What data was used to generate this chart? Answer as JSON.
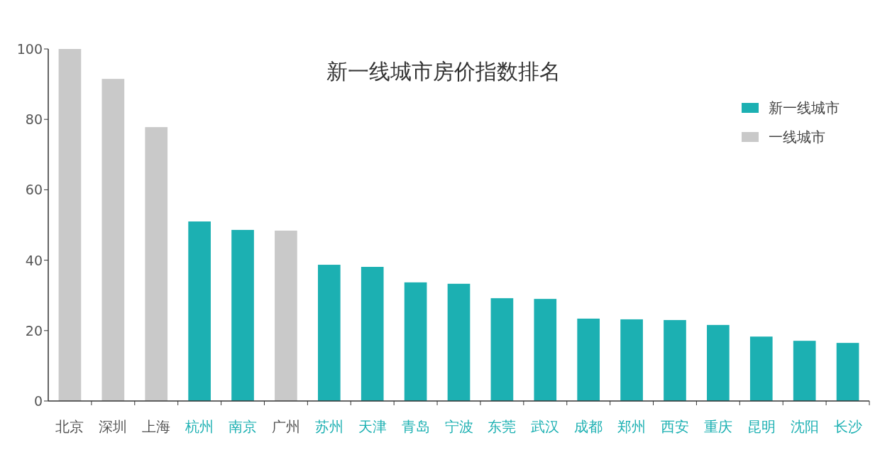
{
  "chart_data": {
    "type": "bar",
    "title": "新一线城市房价指数排名",
    "categories": [
      "北京",
      "深圳",
      "上海",
      "杭州",
      "南京",
      "广州",
      "苏州",
      "天津",
      "青岛",
      "宁波",
      "东莞",
      "武汉",
      "成都",
      "郑州",
      "西安",
      "重庆",
      "昆明",
      "沈阳",
      "长沙"
    ],
    "series": [
      {
        "name": "新一线城市",
        "color": "#1cb0b2",
        "values": [
          null,
          null,
          null,
          51.0,
          48.6,
          null,
          38.7,
          38.1,
          33.7,
          33.3,
          29.2,
          29.0,
          23.4,
          23.2,
          23.0,
          21.6,
          18.3,
          17.1,
          16.5
        ]
      },
      {
        "name": "一线城市",
        "color": "#c9c9c9",
        "values": [
          100,
          91.5,
          77.8,
          null,
          null,
          48.4,
          null,
          null,
          null,
          null,
          null,
          null,
          null,
          null,
          null,
          null,
          null,
          null,
          null
        ]
      }
    ],
    "ylim": [
      0,
      100
    ],
    "yticks": [
      0,
      20,
      40,
      60,
      80,
      100
    ],
    "grid": false,
    "legend": "top right"
  }
}
